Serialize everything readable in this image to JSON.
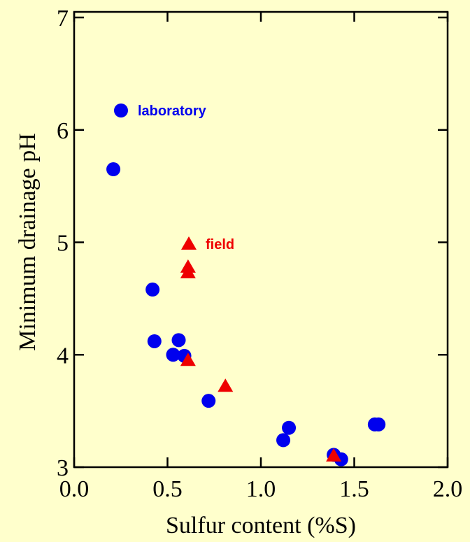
{
  "chart_data": {
    "type": "scatter",
    "x_label": "Sulfur content (%S)",
    "y_label": "Minimum drainage pH",
    "xlim": [
      0,
      2
    ],
    "ylim": [
      3,
      7
    ],
    "xticks": [
      {
        "value": 0,
        "label": "0.0"
      },
      0.5,
      {
        "value": 1,
        "label": "1.0"
      },
      1.5,
      {
        "value": 2,
        "label": "2.0"
      }
    ],
    "yticks": [
      3,
      4,
      5,
      6,
      7
    ],
    "legend": "upper left",
    "series": [
      {
        "name": "laboratory",
        "color": "#0000ee",
        "marker": "circle",
        "x": [
          0.21,
          0.42,
          0.43,
          0.53,
          0.56,
          0.59,
          0.72,
          1.12,
          1.15,
          1.39,
          1.43,
          1.61,
          1.63
        ],
        "values": [
          5.65,
          4.58,
          4.12,
          4.0,
          4.13,
          3.99,
          3.59,
          3.24,
          3.35,
          3.11,
          3.07,
          3.38,
          3.38
        ]
      },
      {
        "name": "field",
        "color": "#ee0000",
        "marker": "triangle",
        "x": [
          0.61,
          0.61,
          0.61,
          0.81,
          1.39
        ],
        "values": [
          4.78,
          4.73,
          3.95,
          3.72,
          3.1
        ]
      }
    ]
  }
}
